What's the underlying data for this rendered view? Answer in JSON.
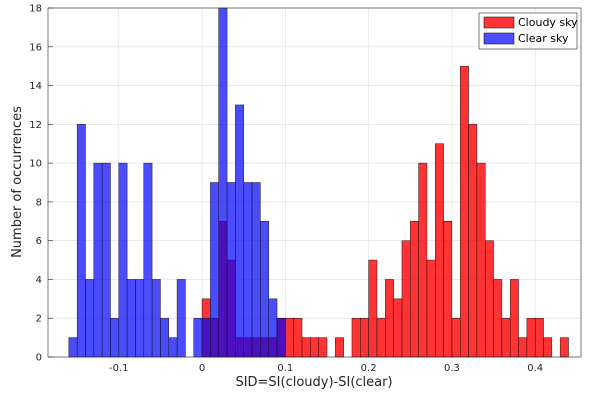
{
  "chart_data": {
    "type": "bar",
    "xlabel": "SID=SI(cloudy)-SI(clear)",
    "ylabel": "Number of occurrences",
    "xlim": [
      -0.185,
      0.455
    ],
    "ylim": [
      0,
      18
    ],
    "x_ticks": [
      -0.1,
      0,
      0.1,
      0.2,
      0.3,
      0.4
    ],
    "x_tick_labels": [
      "-0.1",
      "0",
      "0.1",
      "0.2",
      "0.3",
      "0.4"
    ],
    "y_ticks": [
      0,
      2,
      4,
      6,
      8,
      10,
      12,
      14,
      16,
      18
    ],
    "y_tick_labels": [
      "0",
      "2",
      "4",
      "6",
      "8",
      "10",
      "12",
      "14",
      "16",
      "18"
    ],
    "grid": true,
    "legend_location": "top-right",
    "bin_width": 0.01,
    "series": [
      {
        "name": "Cloudy sky",
        "color": "#ff0000",
        "alpha": 0.8,
        "bin_left_edges": [
          0,
          0.01,
          0.02,
          0.03,
          0.04,
          0.05,
          0.06,
          0.07,
          0.08,
          0.09,
          0.1,
          0.11,
          0.12,
          0.13,
          0.14,
          0.16,
          0.18,
          0.19,
          0.2,
          0.21,
          0.22,
          0.23,
          0.24,
          0.25,
          0.26,
          0.27,
          0.28,
          0.29,
          0.3,
          0.31,
          0.32,
          0.33,
          0.34,
          0.35,
          0.36,
          0.37,
          0.38,
          0.39,
          0.4,
          0.41,
          0.43
        ],
        "counts": [
          3,
          2,
          7,
          5,
          1,
          1,
          1,
          1,
          1,
          2,
          2,
          2,
          1,
          1,
          1,
          1,
          2,
          2,
          5,
          2,
          4,
          3,
          6,
          7,
          10,
          5,
          11,
          7,
          2,
          15,
          12,
          10,
          6,
          4,
          2,
          4,
          1,
          2,
          2,
          1,
          1
        ]
      },
      {
        "name": "Clear sky",
        "color": "#0000ff",
        "alpha": 0.7,
        "bin_left_edges": [
          -0.16,
          -0.15,
          -0.14,
          -0.13,
          -0.12,
          -0.11,
          -0.1,
          -0.09,
          -0.08,
          -0.07,
          -0.06,
          -0.05,
          -0.04,
          -0.03,
          -0.01,
          0,
          0.01,
          0.02,
          0.03,
          0.04,
          0.05,
          0.06,
          0.07,
          0.08,
          0.09
        ],
        "counts": [
          1,
          12,
          4,
          10,
          10,
          2,
          10,
          4,
          4,
          10,
          4,
          2,
          1,
          4,
          2,
          2,
          9,
          18,
          9,
          13,
          9,
          9,
          7,
          3,
          2
        ]
      }
    ]
  }
}
